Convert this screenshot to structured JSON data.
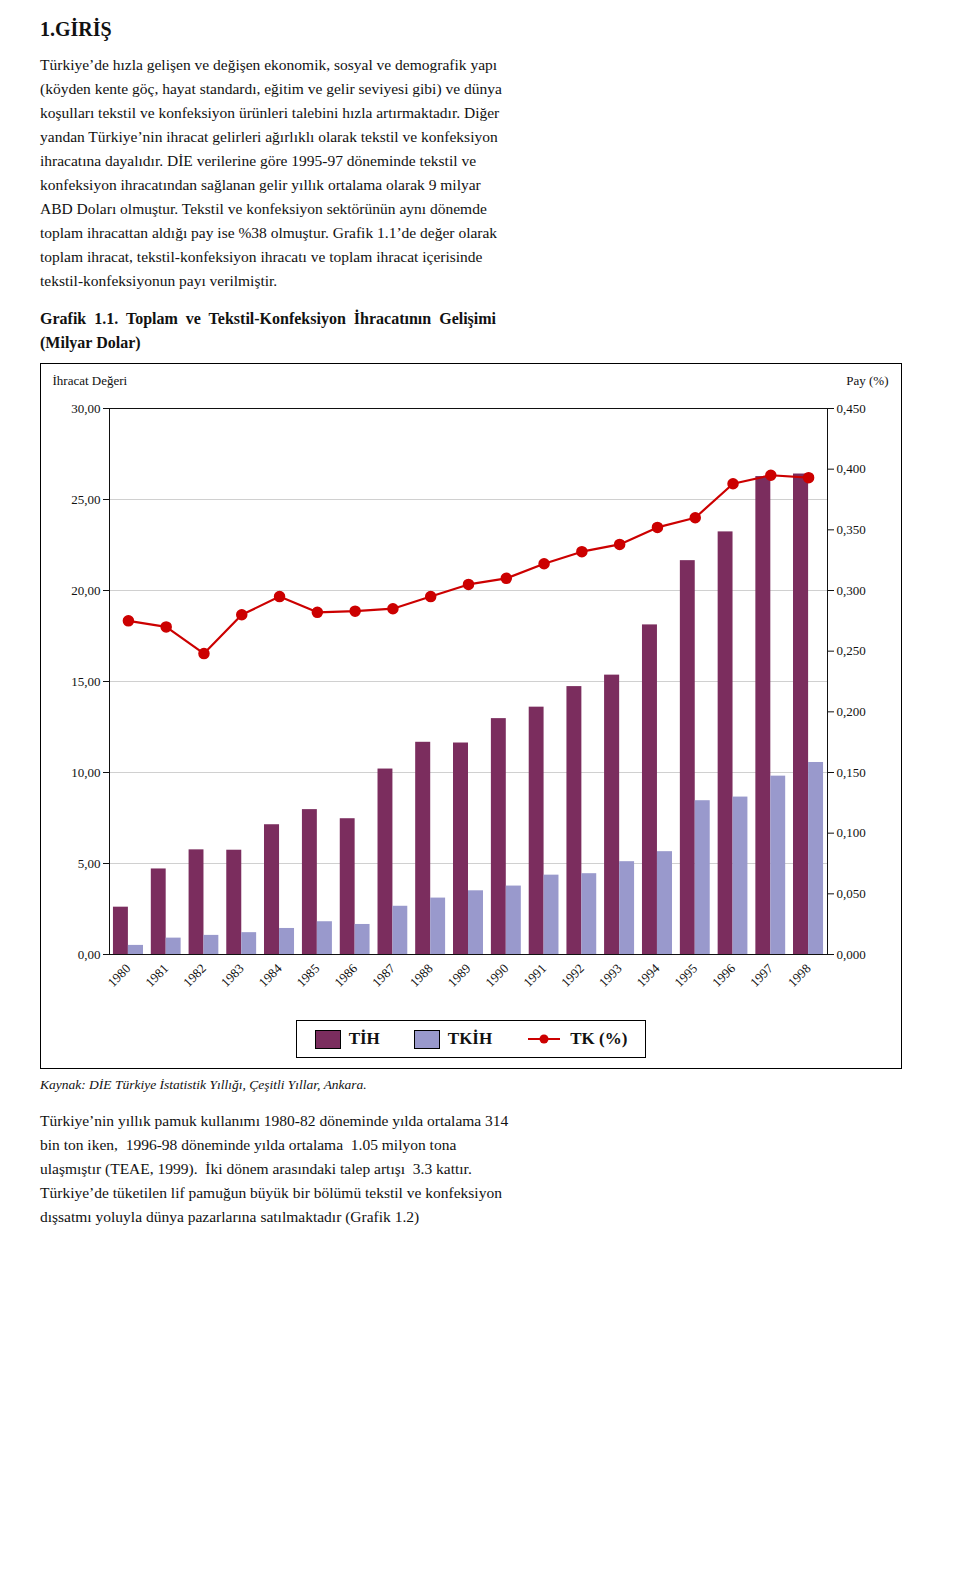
{
  "heading": "1.GİRİŞ",
  "para1": "Türkiye’de hızla gelişen ve değişen ekonomik, sosyal ve demografik yapı\n(köyden kente göç, hayat standardı, eğitim ve gelir seviyesi gibi) ve dünya\nkoşulları tekstil ve konfeksiyon ürünleri talebini hızla artırmaktadır. Diğer\nyandan Türkiye’nin ihracat gelirleri ağırlıklı olarak tekstil ve konfeksiyon\nihracatına dayalıdır. DİE verilerine göre 1995-97 döneminde tekstil ve\nkonfeksiyon ihracatından sağlanan gelir yıllık ortalama olarak 9 milyar\nABD Doları olmuştur. Tekstil ve konfeksiyon sektörünün aynı dönemde\ntoplam ihracattan aldığı pay ise %38 olmuştur. Grafik 1.1’de değer olarak\ntoplam ihracat, tekstil-konfeksiyon ihracatı ve toplam ihracat içerisinde\ntekstil-konfeksiyonun payı verilmiştir.",
  "para2": "Türkiye’nin yıllık pamuk kullanımı 1980-82 döneminde yılda ortalama 314\nbin ton iken,  1996-98 döneminde yılda ortalama  1.05 milyon tona\nulaşmıştır (TEAE, 1999).  İki dönem arasındaki talep artışı  3.3 kattır.\nTürkiye’de tüketilen lif pamuğun büyük bir bölümü tekstil ve konfeksiyon\ndışsatmı yoluyla dünya pazarlarına satılmaktadır (Grafik 1.2)",
  "chart_data": {
    "type": "bar",
    "title": "Grafik  1.1.  Toplam  ve  Tekstil-Konfeksiyon  İhracatının  Gelişimi\n(Milyar Dolar)",
    "categories": [
      "1980",
      "1981",
      "1982",
      "1983",
      "1984",
      "1985",
      "1986",
      "1987",
      "1988",
      "1989",
      "1990",
      "1991",
      "1992",
      "1993",
      "1994",
      "1995",
      "1996",
      "1997",
      "1998"
    ],
    "series": [
      {
        "name": "TİH",
        "type": "bar",
        "color": "#7B2D5E",
        "values": [
          2.6,
          4.7,
          5.75,
          5.73,
          7.13,
          7.96,
          7.46,
          10.19,
          11.66,
          11.62,
          12.96,
          13.59,
          14.72,
          15.35,
          18.11,
          21.64,
          23.22,
          26.26,
          26.4
        ]
      },
      {
        "name": "TKİH",
        "type": "bar",
        "color": "#9999CC",
        "values": [
          0.5,
          0.9,
          1.05,
          1.2,
          1.43,
          1.8,
          1.65,
          2.65,
          3.1,
          3.5,
          3.76,
          4.36,
          4.44,
          5.1,
          5.65,
          8.45,
          8.65,
          9.8,
          10.55
        ]
      },
      {
        "name": "TK (%)",
        "type": "line",
        "axis": "y2",
        "color": "#CC0000",
        "marker": "circle",
        "values": [
          0.275,
          0.27,
          0.248,
          0.28,
          0.295,
          0.282,
          0.283,
          0.285,
          0.295,
          0.305,
          0.31,
          0.322,
          0.332,
          0.338,
          0.352,
          0.36,
          0.388,
          0.395,
          0.393
        ]
      }
    ],
    "ylabel": "İhracat Değeri",
    "y2label": "Pay (%)",
    "ylim": [
      0,
      30
    ],
    "yticks": [
      {
        "value": 0,
        "label": "0,00"
      },
      {
        "value": 5,
        "label": "5,00"
      },
      {
        "value": 10,
        "label": "10,00"
      },
      {
        "value": 15,
        "label": "15,00"
      },
      {
        "value": 20,
        "label": "20,00"
      },
      {
        "value": 25,
        "label": "25,00"
      },
      {
        "value": 30,
        "label": "30,00"
      }
    ],
    "y2lim": [
      0,
      0.45
    ],
    "y2ticks": [
      {
        "value": 0,
        "label": "0,000"
      },
      {
        "value": 0.05,
        "label": "0,050"
      },
      {
        "value": 0.1,
        "label": "0,100"
      },
      {
        "value": 0.15,
        "label": "0,150"
      },
      {
        "value": 0.2,
        "label": "0,200"
      },
      {
        "value": 0.25,
        "label": "0,250"
      },
      {
        "value": 0.3,
        "label": "0,300"
      },
      {
        "value": 0.35,
        "label": "0,350"
      },
      {
        "value": 0.4,
        "label": "0,400"
      },
      {
        "value": 0.45,
        "label": "0,450"
      }
    ],
    "grid": true,
    "legend": "bottom",
    "source": "Kaynak: DİE Türkiye İstatistik Yıllığı, Çeşitli Yıllar, Ankara."
  }
}
